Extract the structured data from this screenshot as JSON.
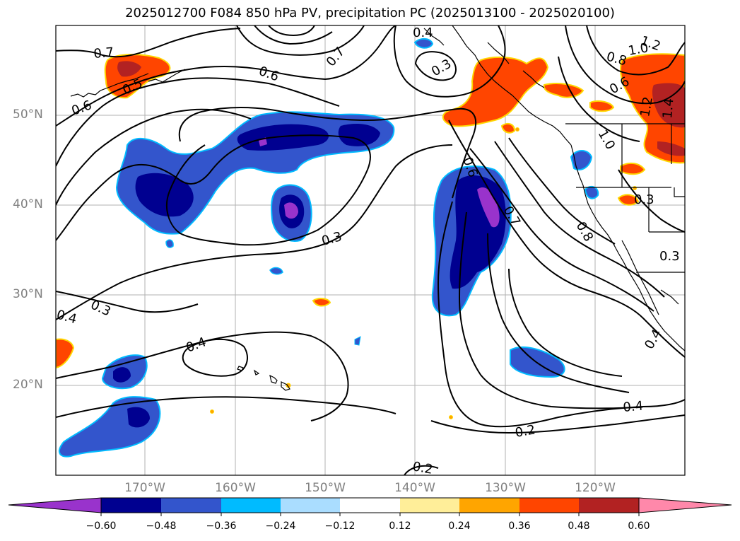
{
  "title": "2025012700 F084 850 hPa PV, precipitation PC (2025013100 - 2025020100)",
  "lat_labels": [
    "50°N",
    "40°N",
    "30°N",
    "20°N"
  ],
  "lon_labels": [
    "170°W",
    "160°W",
    "150°W",
    "140°W",
    "130°W",
    "120°W"
  ],
  "contour_labels": [
    "0.7",
    "0.6",
    "0.5",
    "0.6",
    "0.7",
    "0.4",
    "0.3",
    "1.2",
    "1.0",
    "0.8",
    "0.6",
    "1.0",
    "1.2",
    "1.4",
    "0.3",
    "0.3",
    "0.6",
    "0.7",
    "0.8",
    "0.3",
    "0.3",
    "0.4",
    "0.4",
    "0.4",
    "0.4",
    "0.2",
    "0.2"
  ],
  "colorbar": {
    "ticks": [
      "−0.60",
      "−0.48",
      "−0.36",
      "−0.24",
      "−0.12",
      "0.12",
      "0.24",
      "0.36",
      "0.48",
      "0.60"
    ],
    "colors": [
      "#9933cc",
      "#000090",
      "#3355cc",
      "#00bbff",
      "#aaddff",
      "#ffffff",
      "#ffee99",
      "#ffa500",
      "#ff4500",
      "#b22222",
      "#ff88aa"
    ]
  }
}
